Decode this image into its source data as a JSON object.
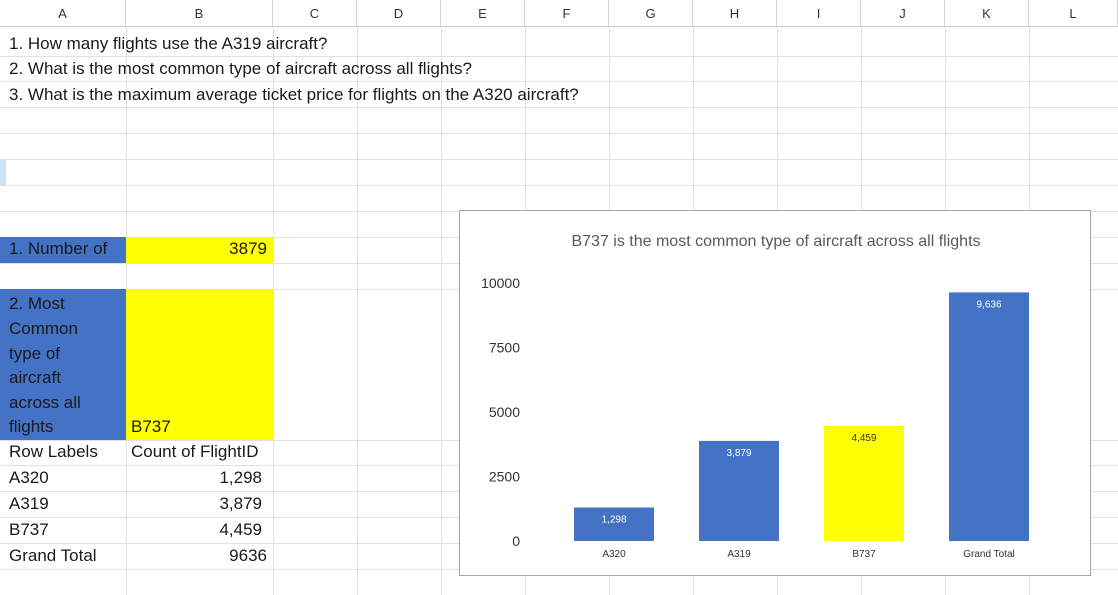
{
  "columns": [
    "A",
    "B",
    "C",
    "D",
    "E",
    "F",
    "G",
    "H",
    "I",
    "J",
    "K",
    "L"
  ],
  "questions": [
    "1. How many flights use the A319 aircraft?",
    "2. What is the most common type of aircraft across all flights?",
    "3. What is the maximum average ticket price for flights on the A320 aircraft?"
  ],
  "answers": {
    "q1_label": "1. Number of",
    "q1_value": "3879",
    "q2_label_lines": [
      "2. Most",
      "Common",
      "type of",
      "aircraft",
      "across all",
      "flights"
    ],
    "q2_value": "B737"
  },
  "pivot": {
    "header_row_labels": "Row Labels",
    "header_count": "Count of FlightID",
    "rows": [
      {
        "label": "A320",
        "value": "1,298"
      },
      {
        "label": "A319",
        "value": "3,879"
      },
      {
        "label": "B737",
        "value": "4,459"
      }
    ],
    "total_label": "Grand Total",
    "total_value": "9636"
  },
  "colors": {
    "blue": "#4472c4",
    "yellow": "#ffff00"
  },
  "chart_data": {
    "type": "bar",
    "title": "B737 is the most common type of aircraft across all flights",
    "categories": [
      "A320",
      "A319",
      "B737",
      "Grand Total"
    ],
    "values": [
      1298,
      3879,
      4459,
      9636
    ],
    "data_labels": [
      "1,298",
      "3,879",
      "4,459",
      "9,636"
    ],
    "bar_colors": [
      "#4472c4",
      "#4472c4",
      "#ffff00",
      "#4472c4"
    ],
    "yticks": [
      "0",
      "2500",
      "5000",
      "7500",
      "10000"
    ],
    "ytick_values": [
      0,
      2500,
      5000,
      7500,
      10000
    ],
    "ylim": [
      0,
      10000
    ],
    "xlabel": "",
    "ylabel": "",
    "grid": false,
    "legend": "none"
  }
}
